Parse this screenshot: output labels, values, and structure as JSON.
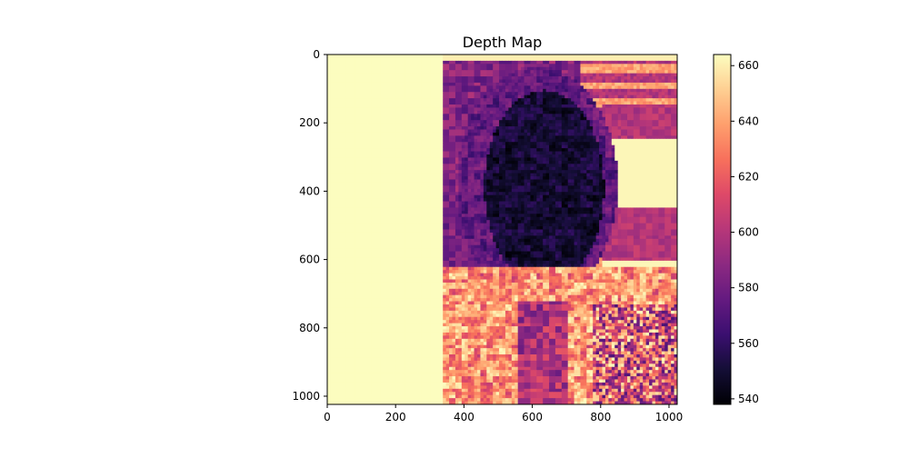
{
  "chart_data": {
    "type": "heatmap",
    "title": "Depth Map",
    "colormap": "magma",
    "x_range": [
      0,
      1024
    ],
    "y_range": [
      0,
      1024
    ],
    "y_inverted": true,
    "x_ticks": [
      0,
      200,
      400,
      600,
      800,
      1000
    ],
    "y_ticks": [
      0,
      200,
      400,
      600,
      800,
      1000
    ],
    "colorbar": {
      "min": 538,
      "max": 664,
      "ticks": [
        540,
        560,
        580,
        600,
        620,
        640,
        660
      ]
    },
    "image_summary": {
      "left_band_x_range": [
        0,
        340
      ],
      "left_band_value": 664,
      "subject_description_values": {
        "face_region": 550,
        "hair_region": 575,
        "background_stripes": 600,
        "lower_body": 635
      }
    }
  }
}
